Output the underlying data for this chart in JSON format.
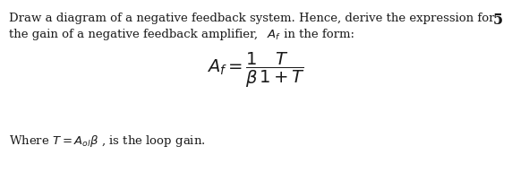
{
  "background_color": "#ffffff",
  "line1": "Draw a diagram of a negative feedback system. Hence, derive the expression for",
  "line2_prefix": "the gain of a negative feedback amplifier, ",
  "line2_math": "$A_f$",
  "line2_suffix": " in the form:",
  "number": "5",
  "formula": "$A_f = \\dfrac{1}{\\beta}\\dfrac{T}{1+T}$",
  "footer": "Where $T = A_{ol}\\beta$ , is the loop gain.",
  "text_color": "#1a1a1a",
  "font_size_body": 9.5,
  "font_size_number": 11.5,
  "font_size_formula": 14,
  "font_size_footer": 9.5,
  "fig_width": 5.72,
  "fig_height": 2.11,
  "dpi": 100
}
